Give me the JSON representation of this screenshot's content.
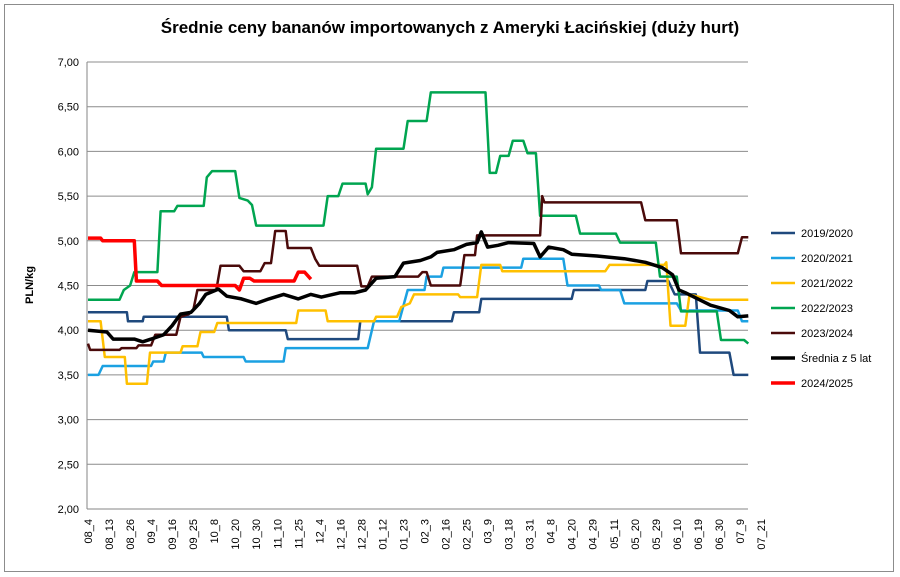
{
  "chart_data": {
    "type": "line",
    "title": "Średnie ceny bananów  importowanych  z Ameryki Łacińskiej  (duży hurt)",
    "xlabel": "",
    "ylabel": "PLN/kg",
    "ylim": [
      2.0,
      7.0
    ],
    "yticks": [
      "2,00",
      "2,50",
      "3,00",
      "3,50",
      "4,00",
      "4,50",
      "5,00",
      "5,50",
      "6,00",
      "6,50",
      "7,00"
    ],
    "x_categories": [
      "08_4",
      "08_13",
      "08_26",
      "09_4",
      "09_16",
      "09_25",
      "10_8",
      "10_20",
      "10_30",
      "11_10",
      "11_25",
      "12_4",
      "12_16",
      "12_28",
      "01_12",
      "01_23",
      "02_3",
      "02_16",
      "02_25",
      "03_9",
      "03_18",
      "03_31",
      "04_8",
      "04_20",
      "04_29",
      "05_11",
      "05_20",
      "05_29",
      "06_10",
      "06_19",
      "06_30",
      "07_9",
      "07_21"
    ],
    "x_units": "category index (fractional between labelled dates)",
    "grid": "horizontal",
    "legend_position": "right",
    "series": [
      {
        "name": "2019/2020",
        "color": "#1F497D",
        "width": 2.5,
        "points": [
          [
            0,
            4.2
          ],
          [
            1.85,
            4.2
          ],
          [
            1.9,
            4.1
          ],
          [
            2.6,
            4.1
          ],
          [
            2.65,
            4.15
          ],
          [
            6.6,
            4.15
          ],
          [
            6.7,
            4.0
          ],
          [
            9.4,
            4.0
          ],
          [
            9.5,
            3.9
          ],
          [
            12.85,
            3.9
          ],
          [
            12.95,
            4.1
          ],
          [
            17.3,
            4.1
          ],
          [
            17.4,
            4.2
          ],
          [
            18.6,
            4.2
          ],
          [
            18.7,
            4.35
          ],
          [
            23.0,
            4.35
          ],
          [
            23.1,
            4.45
          ],
          [
            26.5,
            4.45
          ],
          [
            26.6,
            4.55
          ],
          [
            27.6,
            4.55
          ],
          [
            27.9,
            4.4
          ],
          [
            28.9,
            4.4
          ],
          [
            29.1,
            3.75
          ],
          [
            30.5,
            3.75
          ],
          [
            30.7,
            3.5
          ],
          [
            31.4,
            3.5
          ]
        ]
      },
      {
        "name": "2020/2021",
        "color": "#1BA1E2",
        "width": 2.5,
        "points": [
          [
            0,
            3.5
          ],
          [
            0.5,
            3.5
          ],
          [
            0.7,
            3.6
          ],
          [
            3.0,
            3.6
          ],
          [
            3.1,
            3.65
          ],
          [
            3.6,
            3.65
          ],
          [
            3.7,
            3.75
          ],
          [
            5.4,
            3.75
          ],
          [
            5.5,
            3.7
          ],
          [
            7.4,
            3.7
          ],
          [
            7.5,
            3.65
          ],
          [
            9.3,
            3.65
          ],
          [
            9.4,
            3.8
          ],
          [
            13.3,
            3.8
          ],
          [
            13.6,
            4.1
          ],
          [
            14.8,
            4.1
          ],
          [
            15.2,
            4.45
          ],
          [
            16.0,
            4.45
          ],
          [
            16.1,
            4.6
          ],
          [
            16.8,
            4.6
          ],
          [
            16.9,
            4.7
          ],
          [
            20.6,
            4.7
          ],
          [
            20.7,
            4.8
          ],
          [
            22.6,
            4.8
          ],
          [
            22.8,
            4.5
          ],
          [
            24.3,
            4.5
          ],
          [
            24.4,
            4.45
          ],
          [
            25.3,
            4.45
          ],
          [
            25.5,
            4.3
          ],
          [
            28.0,
            4.3
          ],
          [
            28.2,
            4.22
          ],
          [
            30.9,
            4.22
          ],
          [
            31.1,
            4.1
          ],
          [
            31.4,
            4.1
          ]
        ]
      },
      {
        "name": "2021/2022",
        "color": "#FFC000",
        "width": 2.5,
        "points": [
          [
            0,
            4.1
          ],
          [
            0.6,
            4.1
          ],
          [
            0.8,
            3.7
          ],
          [
            1.75,
            3.7
          ],
          [
            1.85,
            3.4
          ],
          [
            2.8,
            3.4
          ],
          [
            2.95,
            3.75
          ],
          [
            4.4,
            3.75
          ],
          [
            4.5,
            3.82
          ],
          [
            5.2,
            3.82
          ],
          [
            5.35,
            3.98
          ],
          [
            6.0,
            3.98
          ],
          [
            6.15,
            4.08
          ],
          [
            9.9,
            4.08
          ],
          [
            10.0,
            4.22
          ],
          [
            11.3,
            4.22
          ],
          [
            11.4,
            4.1
          ],
          [
            13.6,
            4.1
          ],
          [
            13.7,
            4.15
          ],
          [
            14.7,
            4.15
          ],
          [
            14.9,
            4.26
          ],
          [
            15.3,
            4.3
          ],
          [
            15.5,
            4.4
          ],
          [
            17.6,
            4.4
          ],
          [
            17.7,
            4.37
          ],
          [
            18.5,
            4.37
          ],
          [
            18.7,
            4.73
          ],
          [
            19.6,
            4.73
          ],
          [
            19.7,
            4.66
          ],
          [
            24.6,
            4.66
          ],
          [
            24.8,
            4.73
          ],
          [
            27.4,
            4.73
          ],
          [
            27.5,
            4.76
          ],
          [
            27.7,
            4.05
          ],
          [
            28.4,
            4.05
          ],
          [
            28.6,
            4.4
          ],
          [
            29.6,
            4.34
          ],
          [
            31.4,
            4.34
          ]
        ]
      },
      {
        "name": "2022/2023",
        "color": "#00A550",
        "width": 2.5,
        "points": [
          [
            0,
            4.34
          ],
          [
            1.5,
            4.34
          ],
          [
            1.7,
            4.45
          ],
          [
            2.0,
            4.5
          ],
          [
            2.2,
            4.65
          ],
          [
            3.3,
            4.65
          ],
          [
            3.45,
            5.33
          ],
          [
            4.1,
            5.33
          ],
          [
            4.25,
            5.39
          ],
          [
            5.5,
            5.39
          ],
          [
            5.65,
            5.71
          ],
          [
            5.9,
            5.78
          ],
          [
            7.0,
            5.78
          ],
          [
            7.2,
            5.48
          ],
          [
            7.6,
            5.45
          ],
          [
            7.8,
            5.4
          ],
          [
            8.0,
            5.17
          ],
          [
            11.2,
            5.17
          ],
          [
            11.4,
            5.5
          ],
          [
            11.9,
            5.5
          ],
          [
            12.1,
            5.64
          ],
          [
            13.2,
            5.64
          ],
          [
            13.3,
            5.52
          ],
          [
            13.5,
            5.6
          ],
          [
            13.7,
            6.03
          ],
          [
            15.0,
            6.03
          ],
          [
            15.2,
            6.34
          ],
          [
            16.1,
            6.34
          ],
          [
            16.3,
            6.66
          ],
          [
            18.9,
            6.66
          ],
          [
            19.1,
            5.76
          ],
          [
            19.4,
            5.76
          ],
          [
            19.6,
            5.95
          ],
          [
            20.0,
            5.95
          ],
          [
            20.2,
            6.12
          ],
          [
            20.7,
            6.12
          ],
          [
            20.9,
            5.98
          ],
          [
            21.3,
            5.98
          ],
          [
            21.5,
            5.28
          ],
          [
            23.2,
            5.28
          ],
          [
            23.4,
            5.08
          ],
          [
            25.1,
            5.08
          ],
          [
            25.3,
            4.98
          ],
          [
            27.0,
            4.98
          ],
          [
            27.2,
            4.6
          ],
          [
            28.0,
            4.6
          ],
          [
            28.2,
            4.21
          ],
          [
            29.9,
            4.21
          ],
          [
            30.1,
            3.89
          ],
          [
            31.2,
            3.89
          ],
          [
            31.4,
            3.85
          ]
        ]
      },
      {
        "name": "2023/2024",
        "color": "#4A0A0A",
        "width": 2.5,
        "points": [
          [
            0,
            3.85
          ],
          [
            0.1,
            3.78
          ],
          [
            1.5,
            3.78
          ],
          [
            1.6,
            3.8
          ],
          [
            2.3,
            3.8
          ],
          [
            2.4,
            3.83
          ],
          [
            3.0,
            3.83
          ],
          [
            3.2,
            3.95
          ],
          [
            4.2,
            3.95
          ],
          [
            4.4,
            4.15
          ],
          [
            4.8,
            4.18
          ],
          [
            5.0,
            4.22
          ],
          [
            5.2,
            4.45
          ],
          [
            6.1,
            4.45
          ],
          [
            6.3,
            4.72
          ],
          [
            7.2,
            4.72
          ],
          [
            7.4,
            4.66
          ],
          [
            8.2,
            4.66
          ],
          [
            8.4,
            4.75
          ],
          [
            8.7,
            4.75
          ],
          [
            8.9,
            5.11
          ],
          [
            9.4,
            5.11
          ],
          [
            9.5,
            4.92
          ],
          [
            10.6,
            4.92
          ],
          [
            10.8,
            4.8
          ],
          [
            11.0,
            4.72
          ],
          [
            12.8,
            4.72
          ],
          [
            13.0,
            4.49
          ],
          [
            13.3,
            4.49
          ],
          [
            13.5,
            4.6
          ],
          [
            15.7,
            4.6
          ],
          [
            15.9,
            4.65
          ],
          [
            16.1,
            4.65
          ],
          [
            16.3,
            4.5
          ],
          [
            17.7,
            4.5
          ],
          [
            17.9,
            4.84
          ],
          [
            18.4,
            4.84
          ],
          [
            18.5,
            5.06
          ],
          [
            21.5,
            5.06
          ],
          [
            21.6,
            5.5
          ],
          [
            21.7,
            5.43
          ],
          [
            26.3,
            5.43
          ],
          [
            26.5,
            5.23
          ],
          [
            28.0,
            5.23
          ],
          [
            28.2,
            4.86
          ],
          [
            30.9,
            4.86
          ],
          [
            31.1,
            5.04
          ],
          [
            31.4,
            5.04
          ]
        ]
      },
      {
        "name": "Średnia z 5 lat",
        "color": "#000000",
        "width": 3.5,
        "points": [
          [
            0,
            4.0
          ],
          [
            0.9,
            3.98
          ],
          [
            1.2,
            3.9
          ],
          [
            2.2,
            3.9
          ],
          [
            2.6,
            3.87
          ],
          [
            3.0,
            3.9
          ],
          [
            3.6,
            3.95
          ],
          [
            4.0,
            4.05
          ],
          [
            4.4,
            4.18
          ],
          [
            4.9,
            4.2
          ],
          [
            5.3,
            4.3
          ],
          [
            5.6,
            4.4
          ],
          [
            6.2,
            4.46
          ],
          [
            6.6,
            4.38
          ],
          [
            7.3,
            4.35
          ],
          [
            8.0,
            4.3
          ],
          [
            8.6,
            4.35
          ],
          [
            9.3,
            4.4
          ],
          [
            10.0,
            4.35
          ],
          [
            10.6,
            4.4
          ],
          [
            11.1,
            4.37
          ],
          [
            12.0,
            4.42
          ],
          [
            12.7,
            4.42
          ],
          [
            13.2,
            4.45
          ],
          [
            13.7,
            4.58
          ],
          [
            14.6,
            4.6
          ],
          [
            15.0,
            4.75
          ],
          [
            15.8,
            4.78
          ],
          [
            16.3,
            4.82
          ],
          [
            16.6,
            4.87
          ],
          [
            17.4,
            4.9
          ],
          [
            18.0,
            4.96
          ],
          [
            18.5,
            4.98
          ],
          [
            18.7,
            5.1
          ],
          [
            19.0,
            4.93
          ],
          [
            19.5,
            4.95
          ],
          [
            20.0,
            4.98
          ],
          [
            21.2,
            4.97
          ],
          [
            21.5,
            4.82
          ],
          [
            21.9,
            4.93
          ],
          [
            22.6,
            4.9
          ],
          [
            23.0,
            4.85
          ],
          [
            24.2,
            4.83
          ],
          [
            25.5,
            4.8
          ],
          [
            26.5,
            4.76
          ],
          [
            27.3,
            4.7
          ],
          [
            27.8,
            4.62
          ],
          [
            28.1,
            4.45
          ],
          [
            28.4,
            4.42
          ],
          [
            29.0,
            4.35
          ],
          [
            29.6,
            4.28
          ],
          [
            30.5,
            4.22
          ],
          [
            30.9,
            4.15
          ],
          [
            31.4,
            4.16
          ]
        ]
      },
      {
        "name": "2024/2025",
        "color": "#FF0000",
        "width": 3.5,
        "points": [
          [
            0,
            5.03
          ],
          [
            0.6,
            5.03
          ],
          [
            0.7,
            5.0
          ],
          [
            2.2,
            5.0
          ],
          [
            2.3,
            4.55
          ],
          [
            3.3,
            4.55
          ],
          [
            3.5,
            4.5
          ],
          [
            7.0,
            4.5
          ],
          [
            7.2,
            4.45
          ],
          [
            7.4,
            4.58
          ],
          [
            7.7,
            4.58
          ],
          [
            7.9,
            4.55
          ],
          [
            9.8,
            4.55
          ],
          [
            10.0,
            4.65
          ],
          [
            10.3,
            4.65
          ],
          [
            10.6,
            4.57
          ]
        ]
      }
    ]
  }
}
